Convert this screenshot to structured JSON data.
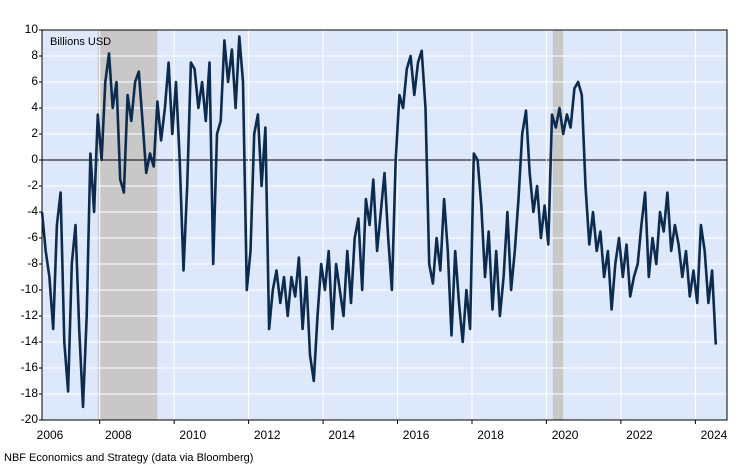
{
  "chart_data": {
    "type": "line",
    "annotation": "Billions USD",
    "source": "NBF Economics and Strategy (data via Bloomberg)",
    "x": [
      2006.45,
      2006.55,
      2006.65,
      2006.75,
      2006.85,
      2006.95,
      2007.05,
      2007.15,
      2007.25,
      2007.35,
      2007.45,
      2007.55,
      2007.65,
      2007.75,
      2007.85,
      2007.95,
      2008.05,
      2008.15,
      2008.25,
      2008.35,
      2008.45,
      2008.55,
      2008.65,
      2008.75,
      2008.85,
      2008.95,
      2009.05,
      2009.15,
      2009.25,
      2009.35,
      2009.45,
      2009.55,
      2009.65,
      2009.75,
      2009.85,
      2009.95,
      2010.05,
      2010.15,
      2010.25,
      2010.35,
      2010.45,
      2010.55,
      2010.65,
      2010.75,
      2010.85,
      2010.95,
      2011.05,
      2011.15,
      2011.25,
      2011.35,
      2011.45,
      2011.55,
      2011.65,
      2011.75,
      2011.85,
      2011.95,
      2012.05,
      2012.15,
      2012.25,
      2012.35,
      2012.45,
      2012.55,
      2012.65,
      2012.75,
      2012.85,
      2012.95,
      2013.05,
      2013.15,
      2013.25,
      2013.35,
      2013.45,
      2013.55,
      2013.65,
      2013.75,
      2013.85,
      2013.95,
      2014.05,
      2014.15,
      2014.25,
      2014.35,
      2014.45,
      2014.55,
      2014.65,
      2014.75,
      2014.85,
      2014.95,
      2015.05,
      2015.15,
      2015.25,
      2015.35,
      2015.45,
      2015.55,
      2015.65,
      2015.75,
      2015.85,
      2015.95,
      2016.05,
      2016.15,
      2016.25,
      2016.35,
      2016.45,
      2016.55,
      2016.65,
      2016.75,
      2016.85,
      2016.95,
      2017.05,
      2017.15,
      2017.25,
      2017.35,
      2017.45,
      2017.55,
      2017.65,
      2017.75,
      2017.85,
      2017.95,
      2018.05,
      2018.15,
      2018.25,
      2018.35,
      2018.45,
      2018.55,
      2018.65,
      2018.75,
      2018.85,
      2018.95,
      2019.05,
      2019.15,
      2019.25,
      2019.35,
      2019.45,
      2019.55,
      2019.65,
      2019.75,
      2019.85,
      2019.95,
      2020.05,
      2020.15,
      2020.25,
      2020.35,
      2020.45,
      2020.55,
      2020.65,
      2020.75,
      2020.85,
      2020.95,
      2021.05,
      2021.15,
      2021.25,
      2021.35,
      2021.45,
      2021.55,
      2021.65,
      2021.75,
      2021.85,
      2021.95,
      2022.05,
      2022.15,
      2022.25,
      2022.35,
      2022.45,
      2022.55,
      2022.65,
      2022.75,
      2022.85,
      2022.95,
      2023.05,
      2023.15,
      2023.25,
      2023.35,
      2023.45,
      2023.55,
      2023.65,
      2023.75,
      2023.85,
      2023.95,
      2024.05,
      2024.15,
      2024.25,
      2024.35,
      2024.45,
      2024.55
    ],
    "series": [
      {
        "color": "#0d2b4e",
        "values": [
          -4,
          -7,
          -9,
          -13,
          -5,
          -2.5,
          -14,
          -17.8,
          -8,
          -5,
          -13,
          -19,
          -12,
          0.5,
          -4,
          3.5,
          0,
          6,
          8.2,
          4,
          6,
          -1.5,
          -2.5,
          5,
          3,
          6,
          6.8,
          3,
          -1,
          0.5,
          -0.5,
          4.5,
          1.5,
          4,
          7.5,
          2,
          6,
          0,
          -8.5,
          -2,
          7.5,
          7,
          4,
          6,
          3,
          7.5,
          -8,
          2,
          3,
          9.2,
          6,
          8.5,
          4,
          9.5,
          6,
          -10,
          -7,
          2,
          3.5,
          -2,
          2.5,
          -13,
          -10,
          -8.5,
          -11,
          -9,
          -12,
          -9,
          -10.5,
          -7.5,
          -13,
          -9,
          -15,
          -17,
          -12,
          -8,
          -10,
          -7,
          -13,
          -8,
          -10,
          -12,
          -7,
          -11,
          -6,
          -4.5,
          -10,
          -3,
          -5,
          -1.5,
          -7,
          -4,
          -1,
          -6,
          -10,
          0,
          5,
          4,
          7,
          8,
          5,
          7.5,
          8.4,
          4,
          -8,
          -9.5,
          -6,
          -8.5,
          -3,
          -7,
          -13.5,
          -7,
          -11,
          -14,
          -10,
          -13,
          0.5,
          0,
          -3.5,
          -9,
          -5.5,
          -11.5,
          -7,
          -12,
          -9,
          -4,
          -10,
          -7,
          -3,
          2,
          3.8,
          -1,
          -4,
          -2,
          -6,
          -3.5,
          -6.5,
          3.5,
          2.5,
          4,
          2,
          3.5,
          2.5,
          5.5,
          6,
          5,
          -2,
          -6.5,
          -4,
          -7,
          -5.5,
          -9,
          -7,
          -11.5,
          -8,
          -6,
          -9,
          -6.5,
          -10.5,
          -9,
          -8,
          -5,
          -2.5,
          -9,
          -6,
          -8,
          -4,
          -5.5,
          -2.5,
          -7,
          -5,
          -6.5,
          -9,
          -7,
          -10.5,
          -8.5,
          -11,
          -5,
          -7,
          -11,
          -8.5,
          -14.2
        ]
      }
    ],
    "shaded_periods": [
      [
        2007.95,
        2009.55
      ],
      [
        2020.17,
        2020.45
      ]
    ],
    "shade_color": "#c8c8c8",
    "background": "#dde9fb",
    "xlim": [
      2006.45,
      2024.85
    ],
    "xticks": [
      2006,
      2008,
      2010,
      2012,
      2014,
      2016,
      2018,
      2020,
      2022,
      2024
    ],
    "ylim": [
      -20,
      10
    ],
    "yticks": [
      -20,
      -18,
      -16,
      -14,
      -12,
      -10,
      -8,
      -6,
      -4,
      -2,
      0,
      2,
      4,
      6,
      8,
      10
    ],
    "grid": true
  }
}
